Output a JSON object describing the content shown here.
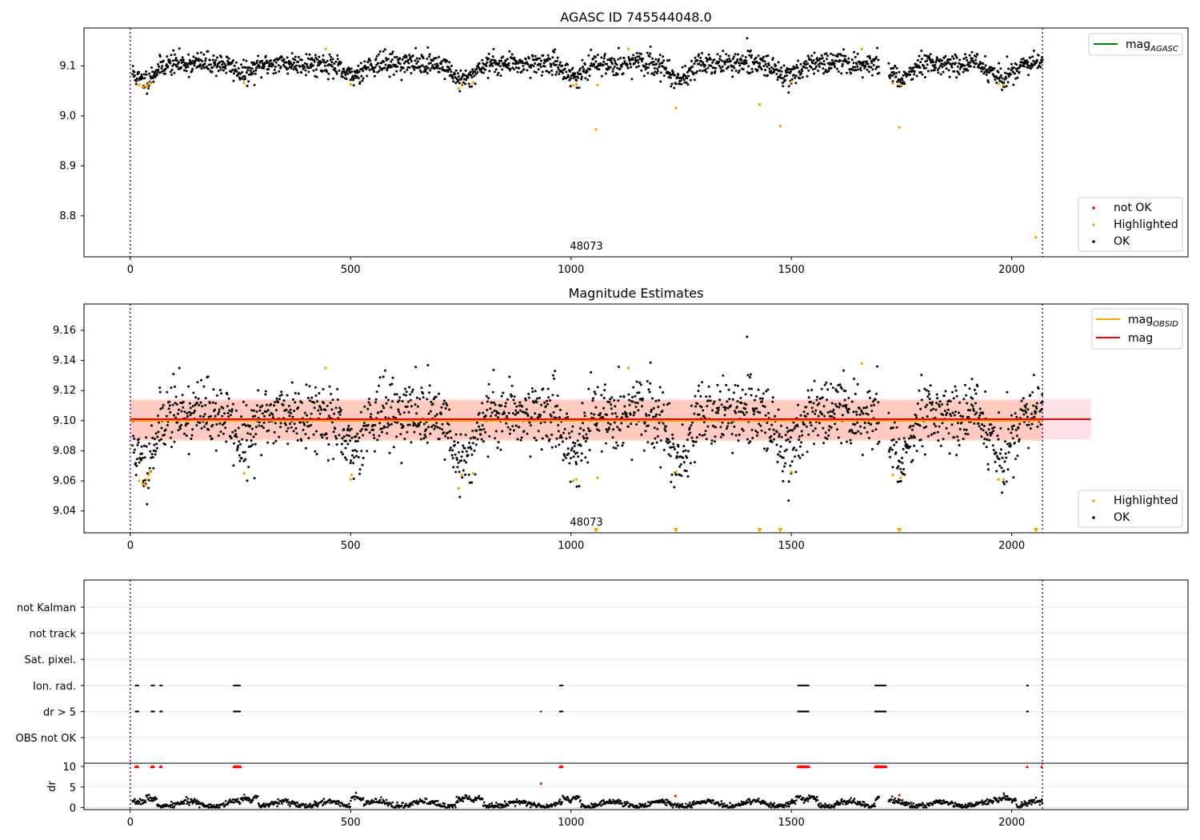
{
  "chart_data": [
    {
      "type": "scatter",
      "panel": "agasc",
      "title": "AGASC ID 745544048.0",
      "xlim": [
        -105,
        2400
      ],
      "ylim": [
        8.718,
        9.176
      ],
      "xticks": [
        0,
        500,
        1000,
        1500,
        2000
      ],
      "yticks": [
        8.8,
        8.9,
        9.0,
        9.1
      ],
      "ytick_labels": [
        "8.8",
        "8.9",
        "9.0",
        "9.1"
      ],
      "obsid_label": {
        "text": "48073",
        "x": 1032
      },
      "vlines_x": [
        0,
        2070
      ],
      "legend_lines": [
        {
          "label": "mag",
          "sub": "AGASC",
          "color": "#008000"
        }
      ],
      "legend_points": [
        {
          "label": "not OK",
          "color": "#ff0000"
        },
        {
          "label": "Highlighted",
          "color": "#ffa500"
        },
        {
          "label": "OK",
          "color": "#000000"
        }
      ],
      "ok_series": {
        "color": "#000000",
        "xmax": 2070,
        "count": 2000,
        "seed": 11,
        "base": 9.105,
        "noise": 0.011,
        "dips": [
          [
            30,
            9.07
          ],
          [
            260,
            9.085
          ],
          [
            500,
            9.08
          ],
          [
            755,
            9.07
          ],
          [
            1010,
            9.08
          ],
          [
            1245,
            9.075
          ],
          [
            1490,
            9.08
          ],
          [
            1745,
            9.075
          ],
          [
            1980,
            9.075
          ]
        ],
        "gaps": [
          [
            1700,
            1720
          ]
        ]
      },
      "highlighted": {
        "color": "#ffa500",
        "points": [
          [
            20,
            9.062
          ],
          [
            28,
            9.058
          ],
          [
            34,
            9.06
          ],
          [
            38,
            9.057
          ],
          [
            42,
            9.064
          ],
          [
            45,
            9.066
          ],
          [
            258,
            9.066
          ],
          [
            443,
            9.134
          ],
          [
            500,
            9.063
          ],
          [
            745,
            9.055
          ],
          [
            752,
            9.064
          ],
          [
            778,
            9.067
          ],
          [
            1005,
            9.061
          ],
          [
            1012,
            9.063
          ],
          [
            1060,
            9.062
          ],
          [
            1057,
            8.973
          ],
          [
            1130,
            9.134
          ],
          [
            1238,
            9.016
          ],
          [
            1428,
            9.023
          ],
          [
            1475,
            8.98
          ],
          [
            1500,
            9.068
          ],
          [
            1660,
            9.134
          ],
          [
            1730,
            9.065
          ],
          [
            1745,
            8.977
          ],
          [
            1748,
            9.062
          ],
          [
            1970,
            9.064
          ],
          [
            1982,
            9.062
          ],
          [
            2055,
            8.757
          ]
        ]
      },
      "not_ok": {
        "color": "#ff0000",
        "points": []
      }
    },
    {
      "type": "scatter",
      "panel": "estimates",
      "title": "Magnitude Estimates",
      "xlim": [
        -105,
        2400
      ],
      "ylim": [
        9.0255,
        9.1775
      ],
      "xticks": [
        0,
        500,
        1000,
        1500,
        2000
      ],
      "yticks": [
        9.04,
        9.06,
        9.08,
        9.1,
        9.12,
        9.14,
        9.16
      ],
      "ytick_labels": [
        "9.04",
        "9.06",
        "9.08",
        "9.10",
        "9.12",
        "9.14",
        "9.16"
      ],
      "obsid_label": {
        "text": "48073",
        "x": 1032
      },
      "vlines_x": [
        0,
        2070
      ],
      "mag": {
        "value": 9.101,
        "sigma": 0.0135,
        "x_end": 2180,
        "color": "#ff0000",
        "band_color": "#ffb6c1"
      },
      "mag_obsid": {
        "value": 9.1,
        "sigma": 0.0135,
        "x_end": 2070,
        "color": "#ffa500",
        "band_color": "#ffa07a"
      },
      "legend_lines": [
        {
          "label": "mag",
          "sub": "OBSID",
          "color": "#ffa500"
        },
        {
          "label": "mag",
          "sub": "",
          "color": "#ff0000"
        }
      ],
      "legend_points": [
        {
          "label": "Highlighted",
          "color": "#ffa500"
        },
        {
          "label": "OK",
          "color": "#000000"
        }
      ],
      "ok_series": {
        "color": "#000000",
        "xmax": 2070,
        "count": 2000,
        "seed": 11,
        "base": 9.105,
        "noise": 0.011,
        "dips": [
          [
            30,
            9.07
          ],
          [
            260,
            9.085
          ],
          [
            500,
            9.08
          ],
          [
            755,
            9.07
          ],
          [
            1010,
            9.08
          ],
          [
            1245,
            9.075
          ],
          [
            1490,
            9.08
          ],
          [
            1745,
            9.075
          ],
          [
            1980,
            9.075
          ]
        ],
        "gaps": [
          [
            1700,
            1720
          ]
        ]
      },
      "highlighted": {
        "color": "#ffa500",
        "points": [
          [
            20,
            9.06
          ],
          [
            28,
            9.058
          ],
          [
            34,
            9.057
          ],
          [
            38,
            9.061
          ],
          [
            42,
            9.064
          ],
          [
            45,
            9.066
          ],
          [
            258,
            9.065
          ],
          [
            443,
            9.135
          ],
          [
            500,
            9.061
          ],
          [
            502,
            9.064
          ],
          [
            745,
            9.055
          ],
          [
            752,
            9.064
          ],
          [
            778,
            9.065
          ],
          [
            1005,
            9.06
          ],
          [
            1012,
            9.061
          ],
          [
            1060,
            9.062
          ],
          [
            1130,
            9.135
          ],
          [
            1238,
            9.066
          ],
          [
            1500,
            9.066
          ],
          [
            1660,
            9.138
          ],
          [
            1730,
            9.064
          ],
          [
            1748,
            9.062
          ],
          [
            1970,
            9.061
          ],
          [
            1982,
            9.061
          ]
        ]
      },
      "below_axis_markers": {
        "color": "#ffa500",
        "x": [
          1057,
          1238,
          1428,
          1475,
          1745,
          2055
        ]
      }
    },
    {
      "type": "scatter",
      "panel": "flags",
      "title": "",
      "xlim": [
        -105,
        2400
      ],
      "xticks": [
        0,
        500,
        1000,
        1500,
        2000
      ],
      "vlines_x": [
        0,
        2070
      ],
      "flag_rows": [
        "not Kalman",
        "not track",
        "Sat. pixel.",
        "Ion. rad.",
        "dr > 5",
        "OBS not OK"
      ],
      "flag_points": {
        "Ion. rad.": [
          [
            12,
            18
          ],
          [
            48,
            55
          ],
          [
            68,
            72
          ],
          [
            235,
            250
          ],
          [
            975,
            982
          ],
          [
            1515,
            1540
          ],
          [
            1690,
            1715
          ],
          [
            2035,
            2037
          ]
        ],
        "dr > 5": [
          [
            12,
            18
          ],
          [
            48,
            55
          ],
          [
            68,
            72
          ],
          [
            235,
            250
          ],
          [
            932,
            933
          ],
          [
            975,
            982
          ],
          [
            1515,
            1540
          ],
          [
            1690,
            1715
          ],
          [
            2035,
            2037
          ]
        ]
      },
      "dr": {
        "ylabel": "dr",
        "ylim": [
          -0.5,
          10.8
        ],
        "yticks": [
          0,
          5,
          10
        ],
        "ytick_labels": [
          "0",
          "5",
          "10"
        ],
        "clip_value": 10,
        "clip_color": "#ff0000",
        "clipped_segments": [
          [
            12,
            18
          ],
          [
            48,
            55
          ],
          [
            68,
            72
          ],
          [
            235,
            250
          ],
          [
            975,
            982
          ],
          [
            1515,
            1540
          ],
          [
            1690,
            1715
          ],
          [
            2035,
            2037
          ],
          [
            2068,
            2070
          ]
        ],
        "red_points": [
          [
            932,
            5.8
          ],
          [
            1237,
            2.8
          ],
          [
            1745,
            3.0
          ]
        ],
        "trace_color": "#000000"
      }
    }
  ]
}
